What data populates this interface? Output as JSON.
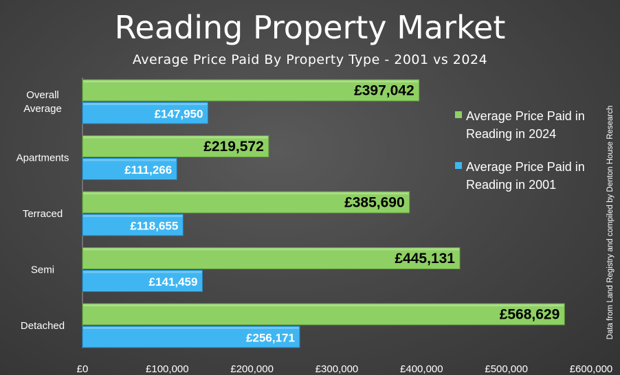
{
  "title": "Reading Property Market",
  "subtitle": "Average Price Paid By Property Type - 2001 vs 2024",
  "source_note": "Data from Land Registry and compiled by Denton House Research",
  "colors": {
    "series_2024": "#8fd064",
    "series_2024_edge": "#5f9e3a",
    "series_2001": "#3fb6f2",
    "series_2001_edge": "#1f86c6"
  },
  "chart_data": {
    "type": "bar",
    "orientation": "horizontal",
    "categories": [
      "Overall Average",
      "Apartments",
      "Terraced",
      "Semi",
      "Detached"
    ],
    "category_label_lines": [
      [
        "Overall",
        "Average"
      ],
      [
        "Apartments"
      ],
      [
        "Terraced"
      ],
      [
        "Semi"
      ],
      [
        "Detached"
      ]
    ],
    "series": [
      {
        "name": "Average Price Paid in Reading in 2024",
        "legend_lines": [
          "Average Price Paid in",
          "Reading in 2024"
        ],
        "values": [
          397042,
          219572,
          385690,
          445131,
          568629
        ],
        "labels": [
          "£397,042",
          "£219,572",
          "£385,690",
          "£445,131",
          "£568,629"
        ]
      },
      {
        "name": "Average Price Paid in Reading in 2001",
        "legend_lines": [
          "Average Price Paid in",
          "Reading in 2001"
        ],
        "values": [
          147950,
          111266,
          118655,
          141459,
          256171
        ],
        "labels": [
          "£147,950",
          "£111,266",
          "£118,655",
          "£141,459",
          "£256,171"
        ]
      }
    ],
    "xlim": [
      0,
      600000
    ],
    "x_ticks": [
      0,
      100000,
      200000,
      300000,
      400000,
      500000,
      600000
    ],
    "x_tick_labels": [
      "£0",
      "£100,000",
      "£200,000",
      "£300,000",
      "£400,000",
      "£500,000",
      "£600,000"
    ],
    "legend_position": "right",
    "grid": false
  }
}
